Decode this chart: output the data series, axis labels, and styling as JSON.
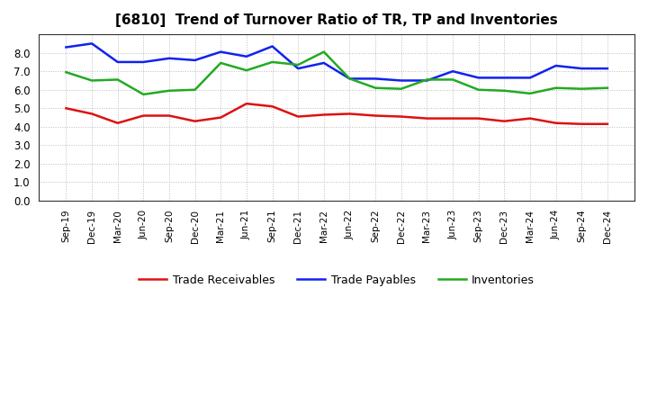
{
  "title": "[6810]  Trend of Turnover Ratio of TR, TP and Inventories",
  "x_labels": [
    "Sep-19",
    "Dec-19",
    "Mar-20",
    "Jun-20",
    "Sep-20",
    "Dec-20",
    "Mar-21",
    "Jun-21",
    "Sep-21",
    "Dec-21",
    "Mar-22",
    "Jun-22",
    "Sep-22",
    "Dec-22",
    "Mar-23",
    "Jun-23",
    "Sep-23",
    "Dec-23",
    "Mar-24",
    "Jun-24",
    "Sep-24",
    "Dec-24"
  ],
  "trade_receivables": [
    5.0,
    4.7,
    4.2,
    4.6,
    4.6,
    4.3,
    4.5,
    5.25,
    5.1,
    4.55,
    4.65,
    4.7,
    4.6,
    4.55,
    4.45,
    4.45,
    4.45,
    4.3,
    4.45,
    4.2,
    4.15,
    4.15
  ],
  "trade_payables": [
    8.3,
    8.5,
    7.5,
    7.5,
    7.7,
    7.6,
    8.05,
    7.8,
    8.35,
    7.15,
    7.45,
    6.6,
    6.6,
    6.5,
    6.5,
    7.0,
    6.65,
    6.65,
    6.65,
    7.3,
    7.15,
    7.15
  ],
  "inventories": [
    6.95,
    6.5,
    6.55,
    5.75,
    5.95,
    6.0,
    7.45,
    7.05,
    7.5,
    7.35,
    8.05,
    6.6,
    6.1,
    6.05,
    6.55,
    6.55,
    6.0,
    5.95,
    5.8,
    6.1,
    6.05,
    6.1
  ],
  "colors": {
    "trade_receivables": "#dd1111",
    "trade_payables": "#1122ee",
    "inventories": "#22aa22"
  },
  "ylim": [
    0.0,
    9.0
  ],
  "yticks": [
    0.0,
    1.0,
    2.0,
    3.0,
    4.0,
    5.0,
    6.0,
    7.0,
    8.0
  ],
  "legend_labels": [
    "Trade Receivables",
    "Trade Payables",
    "Inventories"
  ],
  "background_color": "#ffffff",
  "plot_bg_color": "#ffffff",
  "grid_color": "#aaaaaa"
}
